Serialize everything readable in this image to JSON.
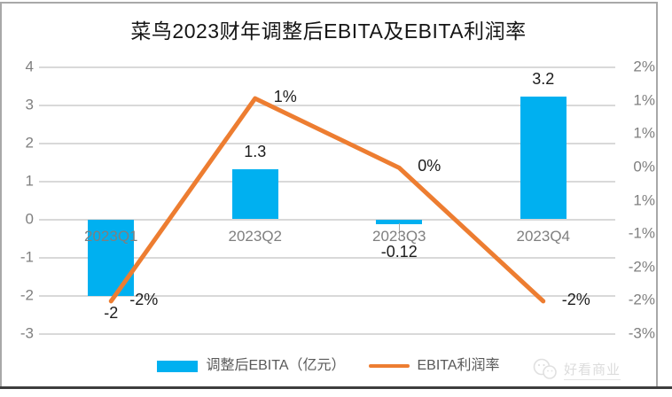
{
  "chart_data": {
    "type": "combo-bar-line",
    "title": "菜鸟2023财年调整后EBITA及EBITA利润率",
    "categories": [
      "2023Q1",
      "2023Q2",
      "2023Q3",
      "2023Q4"
    ],
    "series": [
      {
        "name": "调整后EBITA（亿元）",
        "type": "bar",
        "axis": "left",
        "color": "#00b0f0",
        "values": [
          -2,
          1.3,
          -0.12,
          3.2
        ],
        "labels": [
          "-2",
          "1.3",
          "-0.12",
          "3.2"
        ],
        "label_leaders": [
          false,
          false,
          true,
          false
        ]
      },
      {
        "name": "EBITA利润率",
        "type": "line",
        "axis": "right",
        "color": "#ed7d31",
        "values": [
          -2.4,
          1.4,
          0.1,
          -2.4
        ],
        "labels": [
          "-2%",
          "1%",
          "0%",
          "-2%"
        ]
      }
    ],
    "left_axis": {
      "min": -3,
      "max": 4,
      "step": 1,
      "tick_labels": [
        "4",
        "3",
        "2",
        "1",
        "0",
        "-1",
        "-2",
        "-3"
      ]
    },
    "right_axis": {
      "max_value": 2,
      "min_value": -3,
      "tick_labels": [
        "2%",
        "1%",
        "1%",
        "0%",
        "1%",
        "-1%",
        "-2%",
        "-2%",
        "-3%"
      ]
    },
    "grid": true,
    "legend_position": "bottom"
  },
  "watermark": {
    "text": "好看商业",
    "icon": "chat-bubbles-icon"
  }
}
